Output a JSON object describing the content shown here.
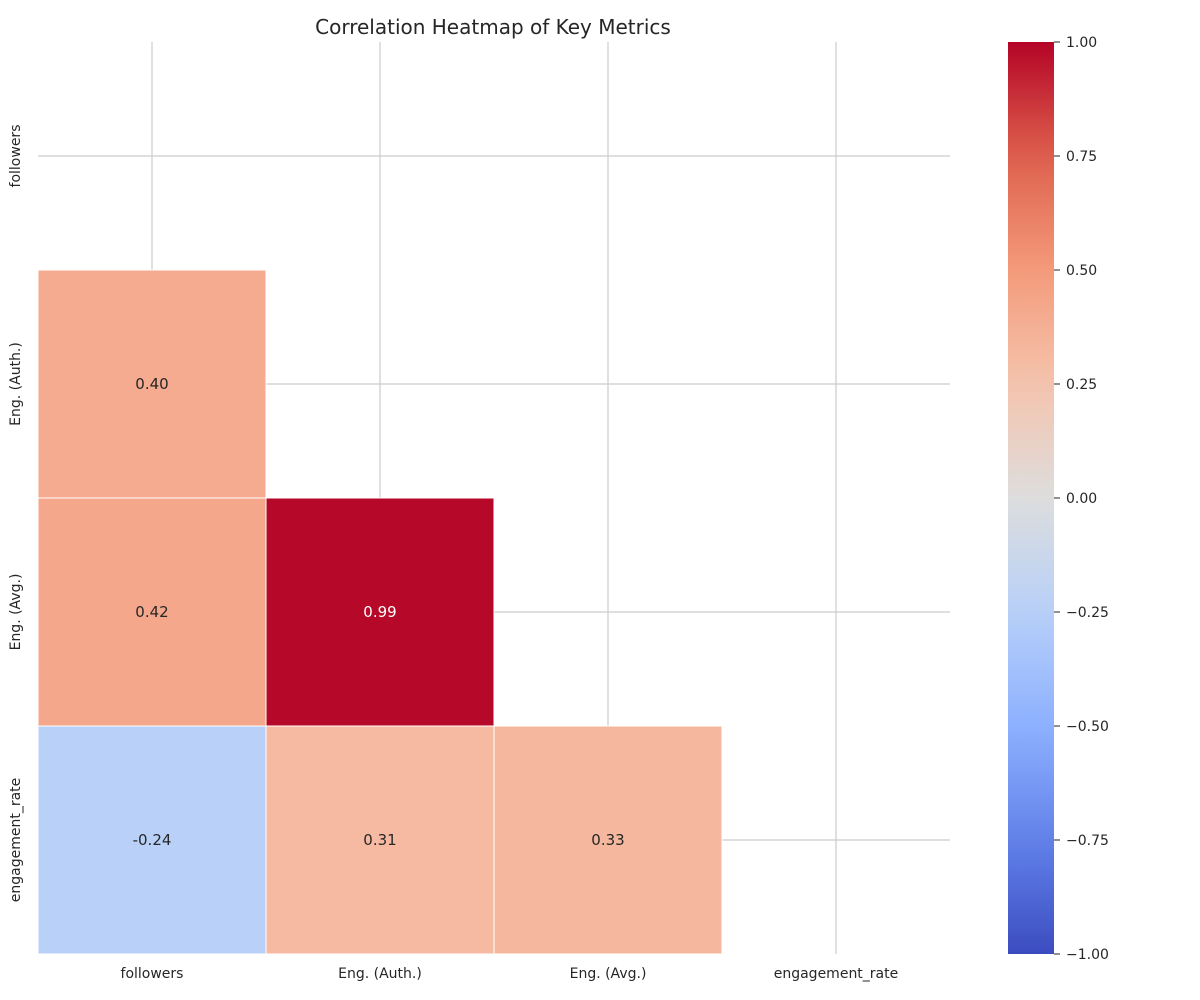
{
  "chart_data": {
    "type": "heatmap",
    "title": "Correlation Heatmap of Key Metrics",
    "xlabel": "",
    "ylabel": "",
    "row_labels": [
      "followers",
      "Eng. (Auth.)",
      "Eng. (Avg.)",
      "engagement_rate"
    ],
    "col_labels": [
      "followers",
      "Eng. (Auth.)",
      "Eng. (Avg.)",
      "engagement_rate"
    ],
    "matrix": [
      [
        null,
        null,
        null,
        null
      ],
      [
        0.4,
        null,
        null,
        null
      ],
      [
        0.42,
        0.99,
        null,
        null
      ],
      [
        -0.24,
        0.31,
        0.33,
        null
      ]
    ],
    "cell_labels": [
      [
        null,
        null,
        null,
        null
      ],
      [
        "0.40",
        null,
        null,
        null
      ],
      [
        "0.42",
        "0.99",
        null,
        null
      ],
      [
        "-0.24",
        "0.31",
        "0.33",
        null
      ]
    ],
    "mask": "upper-triangle-including-diagonal",
    "colormap": "coolwarm",
    "vmin": -1.0,
    "vmax": 1.0,
    "colorbar_ticks": [
      1.0,
      0.75,
      0.5,
      0.25,
      0.0,
      -0.25,
      -0.5,
      -0.75,
      -1.0
    ],
    "colorbar_tick_labels": [
      "1.00",
      "0.75",
      "0.50",
      "0.25",
      "0.00",
      "−0.25",
      "−0.50",
      "−0.75",
      "−1.00"
    ],
    "grid": true,
    "colors": {
      "grid": "#cccccc",
      "text_dark": "#262626",
      "text_light": "#ffffff",
      "cell_border": "#ffffff"
    }
  }
}
